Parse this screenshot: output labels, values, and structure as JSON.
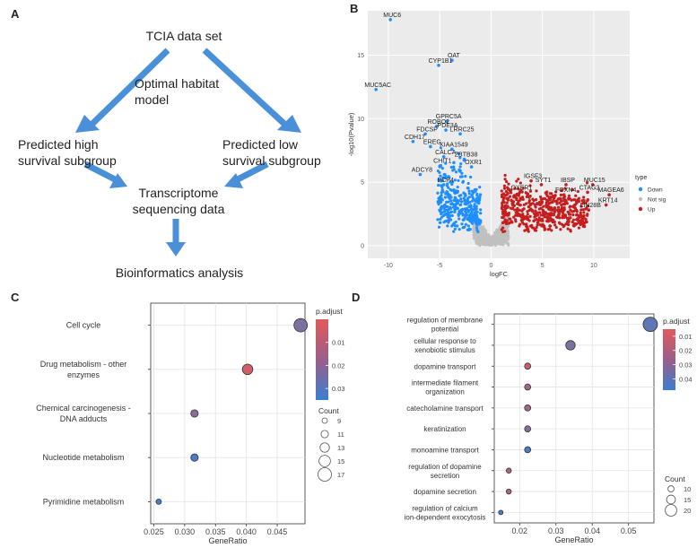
{
  "panels": {
    "a": "A",
    "b": "B",
    "c": "C",
    "d": "D"
  },
  "flowchart": {
    "top": "TCIA data set",
    "model": [
      "Optimal habitat",
      "model"
    ],
    "left": [
      "Predicted high",
      "survival subgroup"
    ],
    "right": [
      "Predicted low",
      "survival subgroup"
    ],
    "middle": [
      "Transcriptome",
      "sequencing data"
    ],
    "bottom": "Bioinformatics analysis"
  },
  "chart_data": [
    {
      "type": "scatter",
      "panel": "B",
      "title": "",
      "xlabel": "logFC",
      "ylabel": "-log10(Pvalue)",
      "xlim": [
        -12,
        13.5
      ],
      "ylim": [
        -1,
        18.5
      ],
      "xticks": [
        -10,
        -5,
        0,
        5,
        10
      ],
      "yticks": [
        0,
        5,
        10,
        15
      ],
      "legend": {
        "title": "type",
        "entries": [
          {
            "label": "Down",
            "color": "#1f8fff"
          },
          {
            "label": "Not sig",
            "color": "#c0c0c0"
          },
          {
            "label": "Up",
            "color": "#c41e1e"
          }
        ]
      },
      "labeled_points": [
        {
          "label": "MUC6",
          "x": -9.8,
          "y": 17.8,
          "type": "Down"
        },
        {
          "label": "OAT",
          "x": -3.8,
          "y": 14.6,
          "type": "Down"
        },
        {
          "label": "CYP1B1",
          "x": -5.1,
          "y": 14.2,
          "type": "Down"
        },
        {
          "label": "MUC5AC",
          "x": -11.2,
          "y": 12.3,
          "type": "Down"
        },
        {
          "label": "GPRC5A",
          "x": -4.3,
          "y": 9.8,
          "type": "Down"
        },
        {
          "label": "ROBO2",
          "x": -5.3,
          "y": 9.4,
          "type": "Down"
        },
        {
          "label": "PDE3A",
          "x": -4.4,
          "y": 9.1,
          "type": "Down"
        },
        {
          "label": "FDCSP",
          "x": -6.4,
          "y": 8.8,
          "type": "Down"
        },
        {
          "label": "LRRC25",
          "x": -3.0,
          "y": 8.8,
          "type": "Down"
        },
        {
          "label": "CDH17",
          "x": -7.6,
          "y": 8.2,
          "type": "Down"
        },
        {
          "label": "EREG",
          "x": -5.9,
          "y": 7.8,
          "type": "Down"
        },
        {
          "label": "KIAA1549",
          "x": -3.8,
          "y": 7.6,
          "type": "Down"
        },
        {
          "label": "CALCA",
          "x": -4.6,
          "y": 7.0,
          "type": "Down"
        },
        {
          "label": "ZBTB38",
          "x": -2.6,
          "y": 6.8,
          "type": "Down"
        },
        {
          "label": "CHIT1",
          "x": -4.9,
          "y": 6.3,
          "type": "Down"
        },
        {
          "label": "OXR1",
          "x": -1.9,
          "y": 6.2,
          "type": "Down"
        },
        {
          "label": "ADCY8",
          "x": -6.9,
          "y": 5.6,
          "type": "Down"
        },
        {
          "label": "PCP4",
          "x": -4.6,
          "y": 4.8,
          "type": "Down"
        },
        {
          "label": "IGSF3",
          "x": 3.9,
          "y": 5.1,
          "type": "Up"
        },
        {
          "label": "SYT1",
          "x": 4.9,
          "y": 4.8,
          "type": "Up"
        },
        {
          "label": "OXER1",
          "x": 2.8,
          "y": 4.2,
          "type": "Up"
        },
        {
          "label": "IBSP",
          "x": 7.3,
          "y": 4.8,
          "type": "Up"
        },
        {
          "label": "MUC15",
          "x": 9.9,
          "y": 4.8,
          "type": "Up"
        },
        {
          "label": "CTAG2",
          "x": 9.4,
          "y": 4.2,
          "type": "Up"
        },
        {
          "label": "MAGEA6",
          "x": 11.5,
          "y": 4.0,
          "type": "Up"
        },
        {
          "label": "FOXN4",
          "x": 7.1,
          "y": 4.0,
          "type": "Up"
        },
        {
          "label": "KRT14",
          "x": 11.2,
          "y": 3.2,
          "type": "Up"
        },
        {
          "label": "LIN28B",
          "x": 9.5,
          "y": 2.8,
          "type": "Up"
        }
      ]
    },
    {
      "type": "scatter",
      "panel": "C",
      "xlabel": "GeneRatio",
      "ylabel": "",
      "xlim": [
        0.0245,
        0.0495
      ],
      "xticks": [
        0.025,
        0.03,
        0.035,
        0.04,
        0.045
      ],
      "xtick_labels": [
        "0.025",
        "0.030",
        "0.035",
        "0.040",
        "0.045"
      ],
      "categories": [
        [
          "Cell cycle"
        ],
        [
          "Drug metabolism - other",
          "enzymes"
        ],
        [
          "Chemical carcinogenesis -",
          "DNA adducts"
        ],
        [
          "Nucleotide metabolism"
        ],
        [
          "Pyrimidine metabolism"
        ]
      ],
      "gene_ratio": [
        0.0488,
        0.0402,
        0.0316,
        0.0316,
        0.0258
      ],
      "count": [
        17,
        14,
        11,
        11,
        9
      ],
      "p_adjust": [
        0.021,
        0.004,
        0.018,
        0.031,
        0.033
      ],
      "color_legend": {
        "title": "p.adjust",
        "min": 0.0,
        "max": 0.035,
        "ticks": [
          "0.01",
          "0.02",
          "0.03"
        ],
        "tick_values": [
          0.01,
          0.02,
          0.03
        ],
        "low_color": "#e25a5a",
        "high_color": "#3a7fd0"
      },
      "size_legend": {
        "title": "Count",
        "values": [
          "9",
          "11",
          "13",
          "15",
          "17"
        ]
      }
    },
    {
      "type": "scatter",
      "panel": "D",
      "xlabel": "GeneRatio",
      "ylabel": "",
      "xlim": [
        0.013,
        0.057
      ],
      "xticks": [
        0.02,
        0.03,
        0.04,
        0.05
      ],
      "xtick_labels": [
        "0.02",
        "0.03",
        "0.04",
        "0.05"
      ],
      "categories": [
        [
          "regulation of membrane",
          "potential"
        ],
        [
          "cellular response to",
          "xenobiotic stimulus"
        ],
        [
          "dopamine transport"
        ],
        [
          "intermediate filament",
          "organization"
        ],
        [
          "catecholamine transport"
        ],
        [
          "keratinization"
        ],
        [
          "monoamine transport"
        ],
        [
          "regulation of dopamine",
          "secretion"
        ],
        [
          "dopamine secretion"
        ],
        [
          "regulation of calcium",
          "ion-dependent exocytosis"
        ]
      ],
      "gene_ratio": [
        0.056,
        0.034,
        0.0222,
        0.0222,
        0.0222,
        0.0222,
        0.0222,
        0.017,
        0.017,
        0.0148
      ],
      "count": [
        25,
        16,
        10,
        10,
        10,
        10,
        10,
        8,
        8,
        7
      ],
      "p_adjust": [
        0.038,
        0.032,
        0.012,
        0.021,
        0.022,
        0.029,
        0.044,
        0.018,
        0.019,
        0.046
      ],
      "color_legend": {
        "title": "p.adjust",
        "min": 0.005,
        "max": 0.048,
        "ticks": [
          "0.01",
          "0.02",
          "0.03",
          "0.04"
        ],
        "tick_values": [
          0.01,
          0.02,
          0.03,
          0.04
        ],
        "low_color": "#e25a5a",
        "high_color": "#3a7fd0"
      },
      "size_legend": {
        "title": "Count",
        "values": [
          "10",
          "15",
          "20"
        ]
      }
    }
  ]
}
